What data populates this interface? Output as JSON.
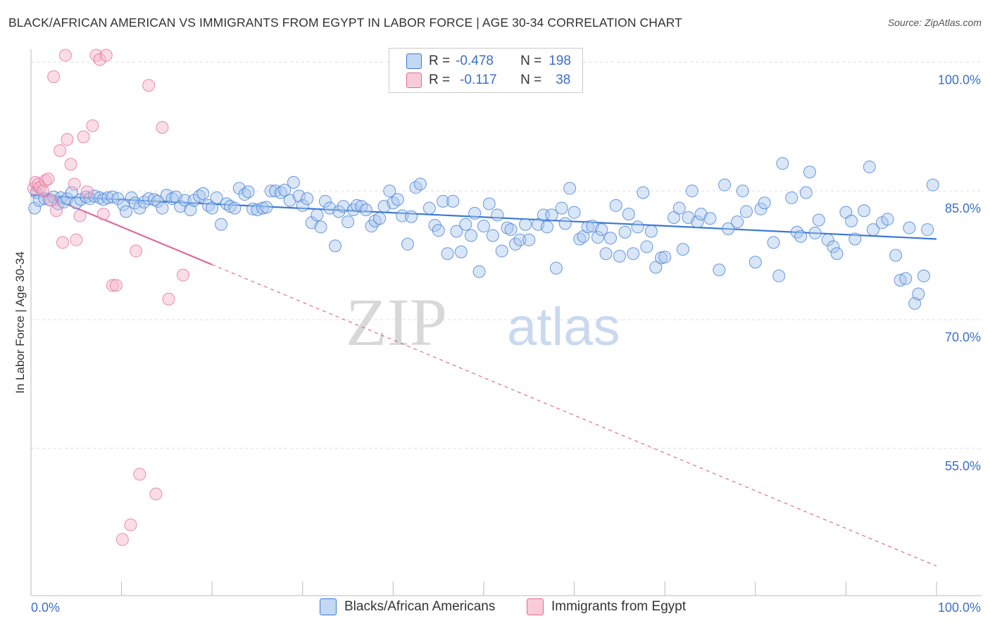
{
  "title": "BLACK/AFRICAN AMERICAN VS IMMIGRANTS FROM EGYPT IN LABOR FORCE | AGE 30-34 CORRELATION CHART",
  "source": "Source: ZipAtlas.com",
  "watermark": {
    "zip": "ZIP",
    "atlas": "atlas"
  },
  "legend": {
    "blue": {
      "r_label": "R =",
      "r_value": "-0.478",
      "n_label": "N =",
      "n_value": "198"
    },
    "pink": {
      "r_label": "R =",
      "r_value": "-0.117",
      "n_label": "N =",
      "n_value": "38"
    }
  },
  "bottom_legend": {
    "blue_label": "Blacks/African Americans",
    "pink_label": "Immigrants from Egypt"
  },
  "colors": {
    "blue": "#3a78d4",
    "blue_fill": "#aac8ee",
    "pink": "#e06a96",
    "pink_fill": "#f6b4c9",
    "grid": "#dddddd",
    "tick_text": "#3a6fc8"
  },
  "chart_data": {
    "type": "scatter",
    "title": "BLACK/AFRICAN AMERICAN VS IMMIGRANTS FROM EGYPT IN LABOR FORCE | AGE 30-34 CORRELATION CHART",
    "xlabel": "",
    "ylabel": "In Labor Force | Age 30-34",
    "xlim": [
      0,
      100
    ],
    "ylim": [
      39.5,
      101.5
    ],
    "x_tick_labels": [
      "0.0%",
      "100.0%"
    ],
    "y_ticks": [
      {
        "value": 100,
        "label": "100.0%"
      },
      {
        "value": 85,
        "label": "85.0%"
      },
      {
        "value": 70,
        "label": "70.0%"
      },
      {
        "value": 55,
        "label": "55.0%"
      }
    ],
    "series": [
      {
        "name": "Blacks/African Americans",
        "color": "blue",
        "trend": {
          "x0": 0,
          "y0": 84.5,
          "x1": 100,
          "y1": 79.4,
          "dashed_from": null
        },
        "points": [
          [
            0.4,
            83.0
          ],
          [
            0.6,
            84.8
          ],
          [
            0.9,
            83.9
          ],
          [
            1.5,
            84.1
          ],
          [
            2.0,
            84.0
          ],
          [
            2.5,
            84.3
          ],
          [
            3.0,
            83.5
          ],
          [
            3.3,
            84.2
          ],
          [
            3.6,
            83.7
          ],
          [
            4.0,
            84.1
          ],
          [
            4.5,
            84.8
          ],
          [
            5.0,
            83.6
          ],
          [
            5.5,
            84.0
          ],
          [
            6.1,
            84.3
          ],
          [
            6.5,
            84.1
          ],
          [
            7.0,
            84.4
          ],
          [
            7.6,
            84.2
          ],
          [
            8.0,
            84.0
          ],
          [
            8.5,
            84.2
          ],
          [
            9.0,
            84.3
          ],
          [
            9.6,
            84.1
          ],
          [
            10.2,
            83.4
          ],
          [
            10.5,
            82.6
          ],
          [
            11.1,
            84.2
          ],
          [
            11.5,
            83.6
          ],
          [
            12.0,
            83.0
          ],
          [
            12.5,
            83.7
          ],
          [
            13.0,
            84.1
          ],
          [
            13.6,
            84.0
          ],
          [
            14.0,
            83.8
          ],
          [
            14.5,
            83.0
          ],
          [
            15.0,
            84.5
          ],
          [
            15.6,
            84.1
          ],
          [
            16.0,
            84.3
          ],
          [
            16.5,
            83.2
          ],
          [
            17.0,
            83.9
          ],
          [
            17.6,
            82.8
          ],
          [
            18.0,
            83.9
          ],
          [
            18.6,
            84.4
          ],
          [
            19.0,
            84.7
          ],
          [
            19.6,
            83.3
          ],
          [
            20.0,
            83.0
          ],
          [
            20.5,
            84.2
          ],
          [
            21.0,
            81.1
          ],
          [
            21.6,
            83.5
          ],
          [
            22.0,
            83.2
          ],
          [
            22.5,
            83.0
          ],
          [
            23.0,
            85.3
          ],
          [
            23.6,
            84.6
          ],
          [
            24.0,
            84.9
          ],
          [
            24.5,
            82.9
          ],
          [
            25.0,
            82.8
          ],
          [
            25.6,
            83.0
          ],
          [
            26.0,
            83.1
          ],
          [
            26.5,
            85.0
          ],
          [
            27.0,
            85.0
          ],
          [
            27.6,
            84.8
          ],
          [
            28.0,
            85.1
          ],
          [
            28.6,
            83.9
          ],
          [
            29.0,
            86.0
          ],
          [
            29.6,
            84.4
          ],
          [
            30.0,
            83.3
          ],
          [
            30.5,
            84.1
          ],
          [
            31.0,
            81.3
          ],
          [
            31.6,
            82.2
          ],
          [
            32.0,
            80.8
          ],
          [
            32.5,
            83.8
          ],
          [
            33.0,
            83.0
          ],
          [
            33.6,
            78.6
          ],
          [
            34.0,
            82.6
          ],
          [
            34.5,
            83.2
          ],
          [
            35.0,
            81.4
          ],
          [
            35.6,
            82.8
          ],
          [
            36.0,
            83.3
          ],
          [
            36.5,
            83.2
          ],
          [
            37.0,
            82.8
          ],
          [
            37.6,
            80.9
          ],
          [
            38.0,
            81.5
          ],
          [
            38.5,
            81.8
          ],
          [
            39.0,
            83.2
          ],
          [
            39.6,
            85.0
          ],
          [
            40.0,
            83.6
          ],
          [
            40.5,
            84.0
          ],
          [
            41.0,
            82.1
          ],
          [
            41.6,
            78.8
          ],
          [
            42.0,
            82.0
          ],
          [
            42.5,
            85.4
          ],
          [
            43.0,
            85.8
          ],
          [
            44.0,
            83.0
          ],
          [
            44.6,
            81.0
          ],
          [
            45.0,
            80.4
          ],
          [
            45.5,
            83.8
          ],
          [
            46.0,
            77.7
          ],
          [
            46.6,
            83.8
          ],
          [
            47.0,
            80.3
          ],
          [
            47.5,
            77.9
          ],
          [
            48.0,
            81.1
          ],
          [
            48.6,
            79.8
          ],
          [
            49.0,
            82.4
          ],
          [
            49.5,
            75.6
          ],
          [
            50.0,
            80.9
          ],
          [
            50.6,
            83.5
          ],
          [
            51.0,
            79.8
          ],
          [
            51.5,
            82.2
          ],
          [
            52.0,
            78.0
          ],
          [
            52.6,
            80.7
          ],
          [
            53.0,
            80.5
          ],
          [
            53.5,
            78.8
          ],
          [
            54.0,
            79.3
          ],
          [
            54.6,
            81.1
          ],
          [
            55.0,
            79.3
          ],
          [
            56.0,
            81.1
          ],
          [
            56.6,
            82.2
          ],
          [
            57.0,
            80.8
          ],
          [
            57.5,
            82.2
          ],
          [
            58.0,
            76.0
          ],
          [
            58.6,
            83.0
          ],
          [
            59.0,
            81.2
          ],
          [
            59.5,
            85.3
          ],
          [
            60.0,
            82.5
          ],
          [
            60.6,
            79.4
          ],
          [
            61.0,
            79.7
          ],
          [
            61.5,
            80.8
          ],
          [
            62.0,
            80.9
          ],
          [
            62.6,
            79.6
          ],
          [
            63.0,
            80.5
          ],
          [
            63.5,
            77.7
          ],
          [
            64.0,
            79.5
          ],
          [
            64.6,
            83.3
          ],
          [
            65.0,
            77.4
          ],
          [
            65.6,
            80.2
          ],
          [
            66.0,
            82.3
          ],
          [
            66.5,
            77.7
          ],
          [
            67.0,
            80.8
          ],
          [
            67.6,
            84.8
          ],
          [
            68.0,
            78.5
          ],
          [
            68.5,
            80.3
          ],
          [
            69.0,
            76.1
          ],
          [
            69.6,
            77.2
          ],
          [
            70.0,
            77.3
          ],
          [
            71.0,
            81.9
          ],
          [
            71.6,
            83.0
          ],
          [
            72.0,
            78.2
          ],
          [
            72.6,
            81.9
          ],
          [
            73.0,
            85.0
          ],
          [
            73.6,
            81.4
          ],
          [
            74.0,
            82.3
          ],
          [
            75.0,
            81.8
          ],
          [
            76.0,
            75.8
          ],
          [
            76.6,
            85.7
          ],
          [
            77.0,
            80.6
          ],
          [
            78.0,
            81.4
          ],
          [
            78.6,
            85.0
          ],
          [
            79.0,
            82.6
          ],
          [
            80.0,
            76.7
          ],
          [
            80.6,
            82.9
          ],
          [
            81.0,
            83.6
          ],
          [
            82.0,
            79.0
          ],
          [
            82.6,
            75.1
          ],
          [
            83.0,
            88.2
          ],
          [
            84.0,
            84.2
          ],
          [
            84.6,
            80.2
          ],
          [
            85.0,
            79.7
          ],
          [
            85.6,
            84.8
          ],
          [
            86.0,
            87.2
          ],
          [
            86.6,
            80.1
          ],
          [
            87.0,
            81.6
          ],
          [
            88.0,
            79.3
          ],
          [
            88.6,
            78.5
          ],
          [
            89.0,
            77.7
          ],
          [
            90.0,
            82.5
          ],
          [
            90.6,
            81.5
          ],
          [
            91.0,
            79.4
          ],
          [
            92.0,
            82.7
          ],
          [
            92.6,
            87.8
          ],
          [
            93.0,
            80.5
          ],
          [
            94.0,
            81.3
          ],
          [
            94.6,
            81.7
          ],
          [
            95.5,
            77.5
          ],
          [
            96.0,
            74.6
          ],
          [
            96.6,
            74.8
          ],
          [
            97.0,
            80.7
          ],
          [
            97.6,
            71.9
          ],
          [
            98.0,
            73.0
          ],
          [
            98.6,
            75.1
          ],
          [
            99.0,
            80.5
          ],
          [
            99.6,
            85.7
          ]
        ]
      },
      {
        "name": "Immigrants from Egypt",
        "color": "pink",
        "trend": {
          "x0": 0,
          "y0": 85.2,
          "x1": 100,
          "y1": 41.3,
          "solid_until": 20
        },
        "points": [
          [
            0.3,
            85.3
          ],
          [
            0.5,
            86.0
          ],
          [
            0.8,
            85.8
          ],
          [
            1.0,
            85.4
          ],
          [
            1.3,
            85.0
          ],
          [
            1.6,
            86.2
          ],
          [
            1.9,
            86.4
          ],
          [
            2.2,
            83.9
          ],
          [
            2.5,
            98.3
          ],
          [
            2.8,
            82.7
          ],
          [
            3.2,
            89.7
          ],
          [
            3.5,
            79.0
          ],
          [
            3.8,
            100.8
          ],
          [
            4.0,
            91.0
          ],
          [
            4.4,
            88.1
          ],
          [
            4.8,
            85.8
          ],
          [
            5.0,
            79.3
          ],
          [
            5.4,
            82.1
          ],
          [
            5.8,
            91.3
          ],
          [
            6.2,
            84.9
          ],
          [
            6.8,
            92.6
          ],
          [
            7.2,
            100.8
          ],
          [
            7.6,
            100.3
          ],
          [
            8.0,
            82.3
          ],
          [
            8.3,
            100.8
          ],
          [
            9.0,
            74.0
          ],
          [
            9.4,
            74.0
          ],
          [
            10.1,
            44.4
          ],
          [
            11.0,
            46.1
          ],
          [
            11.6,
            78.0
          ],
          [
            12.0,
            52.0
          ],
          [
            13.0,
            97.3
          ],
          [
            13.8,
            49.7
          ],
          [
            14.5,
            92.4
          ],
          [
            15.2,
            72.4
          ],
          [
            16.8,
            75.2
          ]
        ]
      }
    ]
  }
}
